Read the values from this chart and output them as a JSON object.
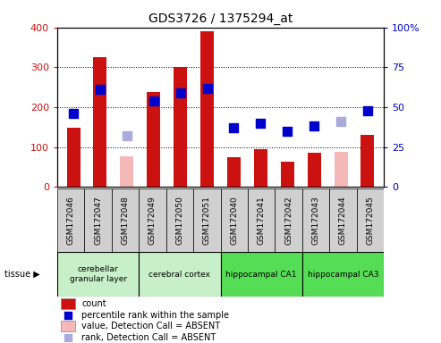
{
  "title": "GDS3726 / 1375294_at",
  "samples": [
    "GSM172046",
    "GSM172047",
    "GSM172048",
    "GSM172049",
    "GSM172050",
    "GSM172051",
    "GSM172040",
    "GSM172041",
    "GSM172042",
    "GSM172043",
    "GSM172044",
    "GSM172045"
  ],
  "count_values": [
    148,
    325,
    null,
    238,
    300,
    390,
    75,
    95,
    63,
    85,
    null,
    130
  ],
  "absent_value_values": [
    null,
    null,
    76,
    null,
    null,
    null,
    null,
    null,
    null,
    null,
    87,
    null
  ],
  "rank_values": [
    46,
    61,
    null,
    54,
    59,
    62,
    37,
    40,
    35,
    38,
    null,
    48
  ],
  "absent_rank_values": [
    null,
    null,
    32,
    null,
    null,
    null,
    null,
    null,
    null,
    null,
    41,
    null
  ],
  "tissue_groups": [
    {
      "label": "cerebellar\ngranular layer",
      "start": 0,
      "end": 3,
      "color": "#c8f0c8"
    },
    {
      "label": "cerebral cortex",
      "start": 3,
      "end": 6,
      "color": "#c8f0c8"
    },
    {
      "label": "hippocampal CA1",
      "start": 6,
      "end": 9,
      "color": "#55dd55"
    },
    {
      "label": "hippocampal CA3",
      "start": 9,
      "end": 12,
      "color": "#55dd55"
    }
  ],
  "left_ylim": [
    0,
    400
  ],
  "right_ylim": [
    0,
    100
  ],
  "left_yticks": [
    0,
    100,
    200,
    300,
    400
  ],
  "right_yticks": [
    0,
    25,
    50,
    75,
    100
  ],
  "right_yticklabels": [
    "0",
    "25",
    "50",
    "75",
    "100%"
  ],
  "bar_color_present": "#cc1111",
  "bar_color_absent": "#f4b8b8",
  "marker_color_present": "#0000cc",
  "marker_color_absent": "#aaaadd",
  "bar_width": 0.5,
  "marker_size": 45,
  "sample_box_color": "#d0d0d0",
  "legend_items": [
    {
      "label": "count",
      "color": "#cc1111",
      "type": "bar"
    },
    {
      "label": "percentile rank within the sample",
      "color": "#0000cc",
      "type": "marker"
    },
    {
      "label": "value, Detection Call = ABSENT",
      "color": "#f4b8b8",
      "type": "bar"
    },
    {
      "label": "rank, Detection Call = ABSENT",
      "color": "#aaaadd",
      "type": "marker"
    }
  ]
}
